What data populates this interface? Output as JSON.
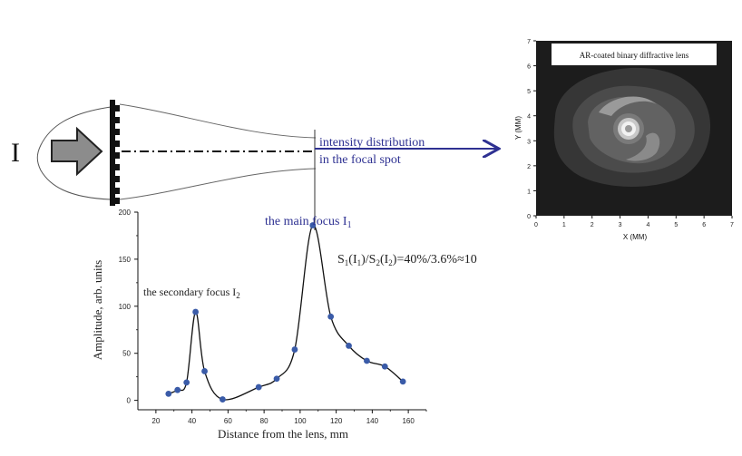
{
  "diagram": {
    "beam_label": "I",
    "annotation_line1": "intensity distribution",
    "annotation_line2": "in the focal spot",
    "main_focus_label": "the main focus I",
    "main_focus_sub": "1",
    "secondary_focus_label": "the secondary focus I",
    "secondary_focus_sub": "2",
    "ratio": {
      "p1": "S",
      "s1": "1",
      "p2": "(I",
      "s2": "1",
      "p3": ")/S",
      "s3": "2",
      "p4": "(I",
      "s4": "2",
      "p5": ")=40%/3.6%≈10"
    },
    "accent_color": "#2e3192",
    "marker_color": "#3a5ba8"
  },
  "inset": {
    "title": "AR-coated binary diffractive lens",
    "xlabel": "X (MM)",
    "ylabel": "Y (MM)",
    "xticks": [
      "0",
      "1",
      "2",
      "3",
      "4",
      "5",
      "6",
      "7"
    ],
    "yticks": [
      "0",
      "1",
      "2",
      "3",
      "4",
      "5",
      "6",
      "7"
    ]
  },
  "chart_data": {
    "type": "line",
    "xlabel": "Distance from the lens, mm",
    "ylabel": "Amplitude, arb. units",
    "xlim": [
      10,
      170
    ],
    "ylim": [
      -10,
      200
    ],
    "xticks": [
      "20",
      "40",
      "60",
      "80",
      "100",
      "120",
      "140",
      "160"
    ],
    "yticks": [
      "0",
      "50",
      "100",
      "150",
      "200"
    ],
    "points": {
      "x": [
        27,
        32,
        37,
        42,
        47,
        57,
        77,
        87,
        97,
        107,
        117,
        127,
        137,
        147,
        157
      ],
      "y": [
        7,
        11,
        19,
        94,
        31,
        1,
        14,
        23,
        54,
        186,
        89,
        58,
        42,
        36,
        20
      ]
    }
  }
}
